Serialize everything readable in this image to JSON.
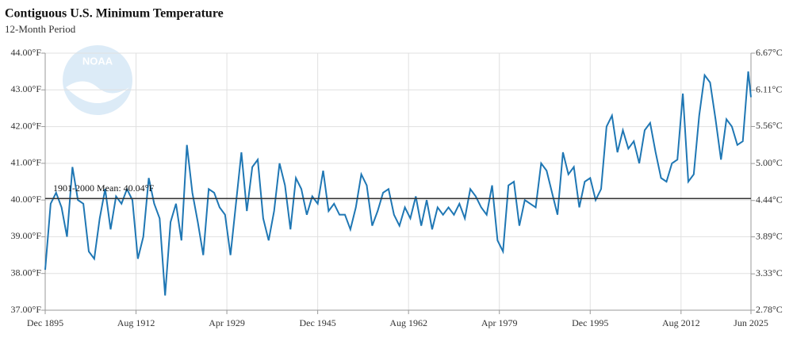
{
  "chart_data": {
    "type": "line",
    "title": "Contiguous U.S. Minimum Temperature",
    "subtitle": "12-Month Period",
    "logo_text": "NOAA",
    "x": [
      "1895-12",
      "1896-12",
      "1897-12",
      "1898-12",
      "1899-12",
      "1900-12",
      "1901-12",
      "1902-12",
      "1903-12",
      "1904-12",
      "1905-12",
      "1906-12",
      "1907-12",
      "1908-12",
      "1909-12",
      "1910-12",
      "1911-12",
      "1912-12",
      "1913-12",
      "1914-12",
      "1915-12",
      "1916-12",
      "1917-12",
      "1918-12",
      "1919-12",
      "1920-12",
      "1921-12",
      "1922-12",
      "1923-12",
      "1924-12",
      "1925-12",
      "1926-12",
      "1927-12",
      "1928-12",
      "1929-12",
      "1930-12",
      "1931-12",
      "1932-12",
      "1933-12",
      "1934-12",
      "1935-12",
      "1936-12",
      "1937-12",
      "1938-12",
      "1939-12",
      "1940-12",
      "1941-12",
      "1942-12",
      "1943-12",
      "1944-12",
      "1945-12",
      "1946-12",
      "1947-12",
      "1948-12",
      "1949-12",
      "1950-12",
      "1951-12",
      "1952-12",
      "1953-12",
      "1954-12",
      "1955-12",
      "1956-12",
      "1957-12",
      "1958-12",
      "1959-12",
      "1960-12",
      "1961-12",
      "1962-12",
      "1963-12",
      "1964-12",
      "1965-12",
      "1966-12",
      "1967-12",
      "1968-12",
      "1969-12",
      "1970-12",
      "1971-12",
      "1972-12",
      "1973-12",
      "1974-12",
      "1975-12",
      "1976-12",
      "1977-12",
      "1978-12",
      "1979-12",
      "1980-12",
      "1981-12",
      "1982-12",
      "1983-12",
      "1984-12",
      "1985-12",
      "1986-12",
      "1987-12",
      "1988-12",
      "1989-12",
      "1990-12",
      "1991-12",
      "1992-12",
      "1993-12",
      "1994-12",
      "1995-12",
      "1996-12",
      "1997-12",
      "1998-12",
      "1999-12",
      "2000-12",
      "2001-12",
      "2002-12",
      "2003-12",
      "2004-12",
      "2005-12",
      "2006-12",
      "2007-12",
      "2008-12",
      "2009-12",
      "2010-12",
      "2011-12",
      "2012-12",
      "2013-12",
      "2014-12",
      "2015-12",
      "2016-12",
      "2017-12",
      "2018-12",
      "2019-12",
      "2020-12",
      "2021-12",
      "2022-12",
      "2023-12",
      "2024-12",
      "2025-06"
    ],
    "series": [
      {
        "name": "Minimum Temperature",
        "color": "#1f77b4",
        "values": [
          38.1,
          39.9,
          40.2,
          39.8,
          39.0,
          40.9,
          40.0,
          39.9,
          38.6,
          38.4,
          39.5,
          40.3,
          39.2,
          40.1,
          39.9,
          40.3,
          40.0,
          38.4,
          39.0,
          40.6,
          39.9,
          39.5,
          37.4,
          39.4,
          39.9,
          38.9,
          41.5,
          40.2,
          39.4,
          38.5,
          40.3,
          40.2,
          39.8,
          39.6,
          38.5,
          39.9,
          41.3,
          39.7,
          40.9,
          41.1,
          39.5,
          38.9,
          39.7,
          41.0,
          40.4,
          39.2,
          40.6,
          40.3,
          39.6,
          40.1,
          39.9,
          40.8,
          39.7,
          39.9,
          39.6,
          39.6,
          39.2,
          39.8,
          40.7,
          40.4,
          39.3,
          39.7,
          40.2,
          40.3,
          39.6,
          39.3,
          39.8,
          39.5,
          40.1,
          39.3,
          40.0,
          39.2,
          39.8,
          39.6,
          39.8,
          39.6,
          39.9,
          39.5,
          40.3,
          40.1,
          39.8,
          39.6,
          40.4,
          38.9,
          38.6,
          40.4,
          40.5,
          39.3,
          40.0,
          39.9,
          39.8,
          41.0,
          40.8,
          40.2,
          39.6,
          41.3,
          40.7,
          40.9,
          39.8,
          40.5,
          40.6,
          40.0,
          40.3,
          42.0,
          42.3,
          41.3,
          41.9,
          41.4,
          41.6,
          41.0,
          41.9,
          42.1,
          41.3,
          40.6,
          40.5,
          41.0,
          41.1,
          42.9,
          40.5,
          40.7,
          42.3,
          43.4,
          43.2,
          42.2,
          41.1,
          42.2,
          42.0,
          41.5,
          41.6,
          43.5,
          42.8
        ]
      }
    ],
    "mean": {
      "value": 40.04,
      "label": "1901-2000 Mean: 40.04°F"
    },
    "xlim": [
      "1895-12",
      "2025-06"
    ],
    "xticks": [
      {
        "value": "1895-12",
        "label": "Dec 1895"
      },
      {
        "value": "1912-08",
        "label": "Aug 1912"
      },
      {
        "value": "1929-04",
        "label": "Apr 1929"
      },
      {
        "value": "1945-12",
        "label": "Dec 1945"
      },
      {
        "value": "1962-08",
        "label": "Aug 1962"
      },
      {
        "value": "1979-04",
        "label": "Apr 1979"
      },
      {
        "value": "1995-12",
        "label": "Dec 1995"
      },
      {
        "value": "2012-08",
        "label": "Aug 2012"
      },
      {
        "value": "2025-06",
        "label": "Jun 2025"
      }
    ],
    "ylim": [
      37,
      44
    ],
    "yticks": [
      {
        "value": 37,
        "label": "37.00°F"
      },
      {
        "value": 38,
        "label": "38.00°F"
      },
      {
        "value": 39,
        "label": "39.00°F"
      },
      {
        "value": 40,
        "label": "40.00°F"
      },
      {
        "value": 41,
        "label": "41.00°F"
      },
      {
        "value": 42,
        "label": "42.00°F"
      },
      {
        "value": 43,
        "label": "43.00°F"
      },
      {
        "value": 44,
        "label": "44.00°F"
      }
    ],
    "y2lim": [
      2.78,
      6.67
    ],
    "y2ticks": [
      {
        "value": 2.78,
        "label": "2.78°C"
      },
      {
        "value": 3.33,
        "label": "3.33°C"
      },
      {
        "value": 3.89,
        "label": "3.89°C"
      },
      {
        "value": 4.44,
        "label": "4.44°C"
      },
      {
        "value": 5.0,
        "label": "5.00°C"
      },
      {
        "value": 5.56,
        "label": "5.56°C"
      },
      {
        "value": 6.11,
        "label": "6.11°C"
      },
      {
        "value": 6.67,
        "label": "6.67°C"
      }
    ],
    "grid": true
  }
}
